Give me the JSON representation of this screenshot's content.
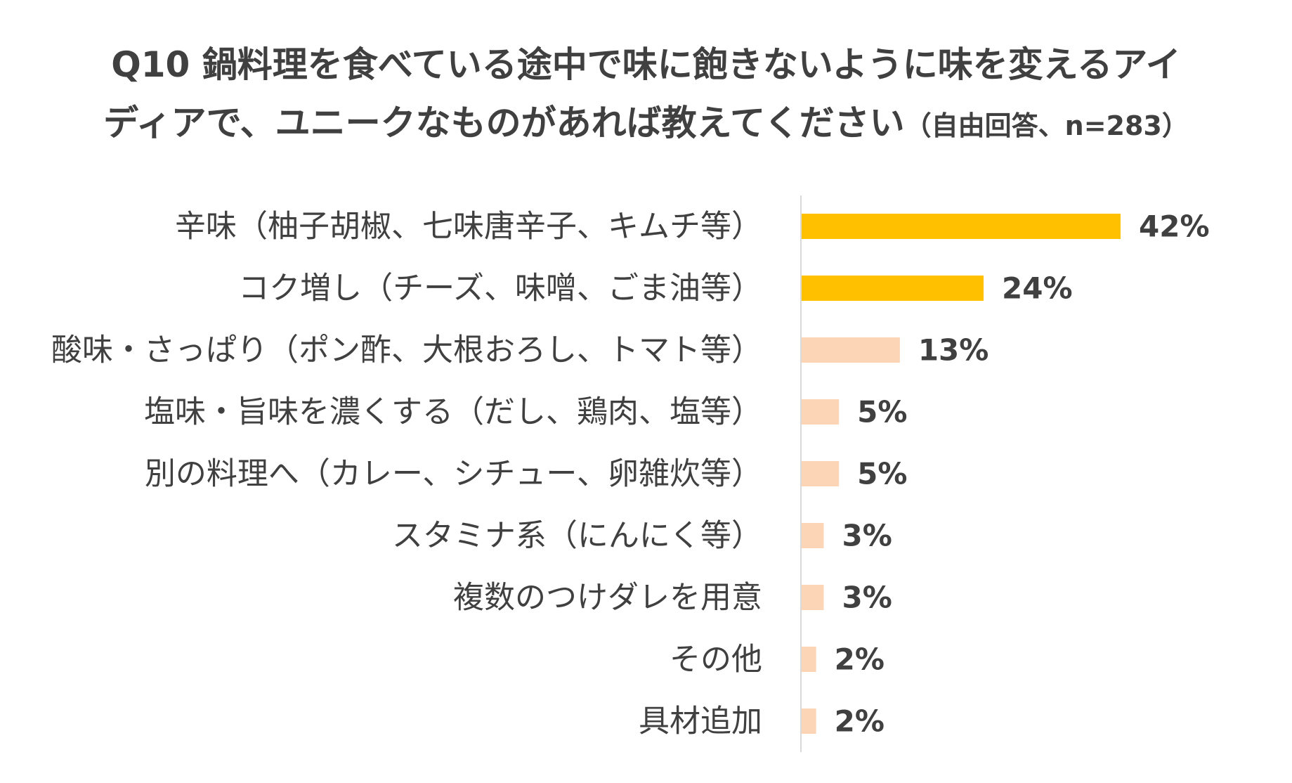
{
  "title": {
    "line1": "Q10 鍋料理を食べている途中で味に飽きないように味を変えるアイ",
    "line2": "ディアで、ユニークなものがあれば教えてください",
    "note": "（自由回答、n=283）"
  },
  "chart_data": {
    "type": "bar",
    "orientation": "horizontal",
    "categories": [
      "辛味（柚子胡椒、七味唐辛子、キムチ等）",
      "コク増し（チーズ、味噌、ごま油等）",
      "酸味・さっぱり（ポン酢、大根おろし、トマト等）",
      "塩味・旨味を濃くする（だし、鶏肉、塩等）",
      "別の料理へ（カレー、シチュー、卵雑炊等）",
      "スタミナ系（にんにく等）",
      "複数のつけダレを用意",
      "その他",
      "具材追加"
    ],
    "values": [
      42,
      24,
      13,
      5,
      5,
      3,
      3,
      2,
      2
    ],
    "value_labels": [
      "42%",
      "24%",
      "13%",
      "5%",
      "5%",
      "3%",
      "3%",
      "2%",
      "2%"
    ],
    "unit": "%",
    "colors": {
      "highlight": "#FFC000",
      "normal": "#FBD5B5",
      "axis": "#D9D9D9"
    },
    "highlight_count": 2,
    "xlim": [
      0,
      42
    ],
    "grid": false,
    "legend": "none"
  }
}
